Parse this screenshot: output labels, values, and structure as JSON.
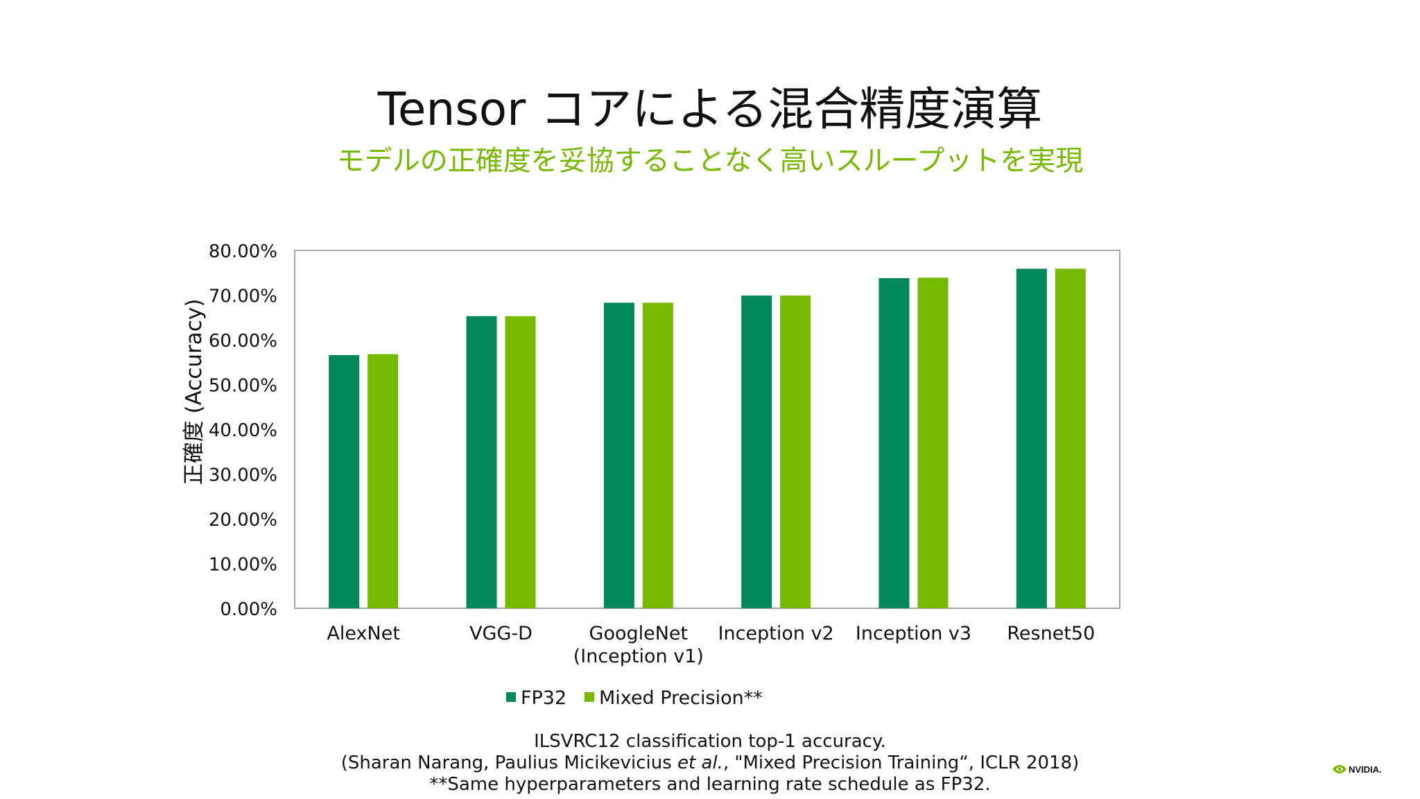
{
  "slide": {
    "title": "Tensor コアによる混合精度演算",
    "subtitle": "モデルの正確度を妥協することなく高いスループットを実現"
  },
  "footnotes": {
    "line1": "ILSVRC12 classification top-1 accuracy.",
    "line2_prefix": "(Sharan Narang, Paulius Micikevicius ",
    "line2_italic": "et al.",
    "line2_suffix": ", \"Mixed Precision Training“, ICLR 2018)",
    "line3": "**Same hyperparameters and learning rate schedule as FP32."
  },
  "logo": {
    "text": "NVIDIA.",
    "icon": "nvidia-eye-icon"
  },
  "colors": {
    "accent": "#76b900",
    "fp32": "#00885a",
    "mixed": "#76b900",
    "axis": "#a6a6a6"
  },
  "chart_data": {
    "type": "bar",
    "ylabel": "正確度 (Accuracy)",
    "xlabel": "",
    "ylim": [
      0,
      0.8
    ],
    "y_ticks": [
      "0.00%",
      "10.00%",
      "20.00%",
      "30.00%",
      "40.00%",
      "50.00%",
      "60.00%",
      "70.00%",
      "80.00%"
    ],
    "y_tick_values": [
      0,
      0.1,
      0.2,
      0.3,
      0.4,
      0.5,
      0.6,
      0.7,
      0.8
    ],
    "grid": false,
    "legend_position": "bottom",
    "categories": [
      [
        "AlexNet"
      ],
      [
        "VGG-D"
      ],
      [
        "GoogleNet",
        "(Inception v1)"
      ],
      [
        "Inception v2"
      ],
      [
        "Inception v3"
      ],
      [
        "Resnet50"
      ]
    ],
    "series": [
      {
        "name": "FP32",
        "color": "#00885a",
        "values": [
          0.566,
          0.653,
          0.683,
          0.699,
          0.738,
          0.759
        ]
      },
      {
        "name": "Mixed Precision**",
        "color": "#76b900",
        "values": [
          0.568,
          0.653,
          0.683,
          0.699,
          0.739,
          0.759
        ]
      }
    ]
  }
}
